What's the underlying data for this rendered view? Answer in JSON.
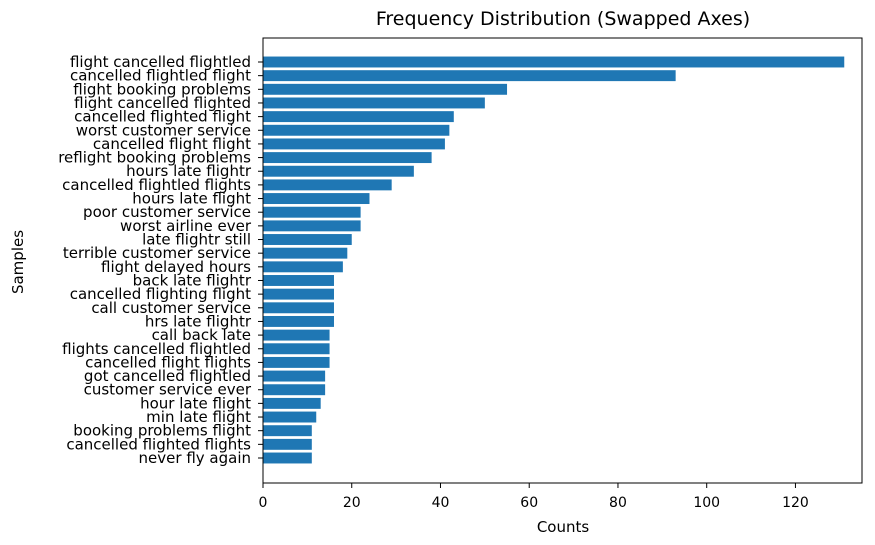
{
  "chart_data": {
    "type": "bar",
    "orientation": "horizontal",
    "title": "Frequency Distribution (Swapped Axes)",
    "xlabel": "Counts",
    "ylabel": "Samples",
    "xlim": [
      0,
      135
    ],
    "xticks": [
      0,
      20,
      40,
      60,
      80,
      100,
      120
    ],
    "grid": false,
    "bar_color": "#1f77b4",
    "categories": [
      "flight cancelled flightled",
      "cancelled flightled flight",
      "flight booking problems",
      "flight cancelled flighted",
      "cancelled flighted flight",
      "worst customer service",
      "cancelled flight flight",
      "reflight booking problems",
      "hours late flightr",
      "cancelled flightled flights",
      "hours late flight",
      "poor customer service",
      "worst airline ever",
      "late flightr still",
      "terrible customer service",
      "flight delayed hours",
      "back late flightr",
      "cancelled flighting flight",
      "call customer service",
      "hrs late flightr",
      "call back late",
      "flights cancelled flightled",
      "cancelled flight flights",
      "got cancelled flightled",
      "customer service ever",
      "hour late flight",
      "min late flight",
      "booking problems flight",
      "cancelled flighted flights",
      "never fly again"
    ],
    "values": [
      131,
      93,
      55,
      50,
      43,
      42,
      41,
      38,
      34,
      29,
      24,
      22,
      22,
      20,
      19,
      18,
      16,
      16,
      16,
      16,
      15,
      15,
      15,
      14,
      14,
      13,
      12,
      11,
      11,
      11
    ]
  }
}
